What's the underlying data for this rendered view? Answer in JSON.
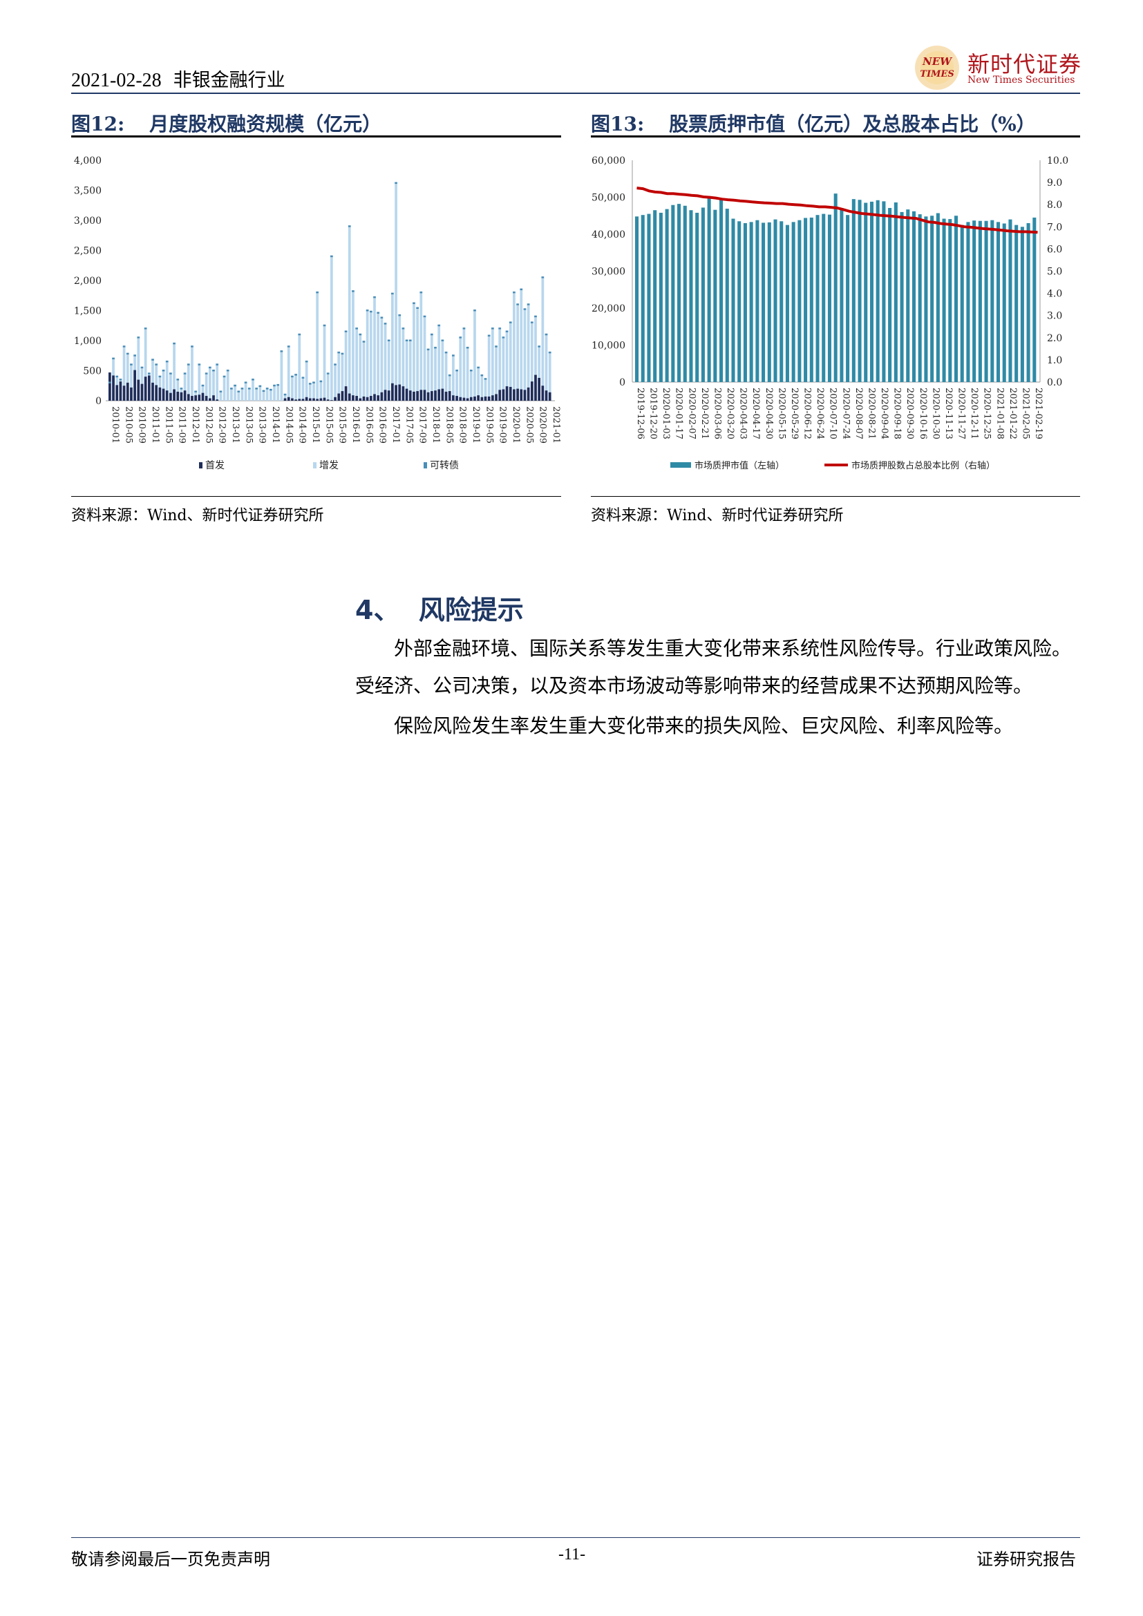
{
  "header": {
    "date": "2021-02-28",
    "industry": "非银金融行业",
    "brand_cn": "新时代证券",
    "brand_en": "New Times Securities",
    "logo_text_1": "NEW",
    "logo_text_2": "TIMES"
  },
  "figures": [
    {
      "number": "图12:",
      "title": "月度股权融资规模（亿元）",
      "source": "资料来源：Wind、新时代证券研究所"
    },
    {
      "number": "图13:",
      "title": "股票质押市值（亿元）及总股本占比（%）",
      "source": "资料来源：Wind、新时代证券研究所"
    }
  ],
  "chart_data": [
    {
      "type": "bar",
      "stacked": false,
      "ylim": [
        0,
        4000
      ],
      "yticks": [
        "4,000",
        "3,500",
        "3,000",
        "2,500",
        "2,000",
        "1,500",
        "1,000",
        "500",
        "0"
      ],
      "xtick_labels": [
        "2010-01",
        "2010-05",
        "2010-09",
        "2011-01",
        "2011-05",
        "2011-09",
        "2012-01",
        "2012-05",
        "2012-09",
        "2013-01",
        "2013-05",
        "2013-09",
        "2014-01",
        "2014-05",
        "2014-09",
        "2015-01",
        "2015-05",
        "2015-09",
        "2016-01",
        "2016-05",
        "2016-09",
        "2017-01",
        "2017-05",
        "2017-09",
        "2018-01",
        "2018-05",
        "2018-09",
        "2019-01",
        "2019-05",
        "2019-09",
        "2020-01",
        "2020-05",
        "2020-09",
        "2021-01"
      ],
      "legend": [
        "首发",
        "增发",
        "可转债"
      ],
      "colors": {
        "ipo": "#1f2d5a",
        "seo": "#b8d7ee",
        "cb": "#4a8db7"
      },
      "ipo": [
        470,
        420,
        260,
        320,
        250,
        300,
        220,
        510,
        350,
        280,
        400,
        420,
        300,
        260,
        220,
        200,
        170,
        130,
        190,
        150,
        140,
        170,
        110,
        80,
        90,
        100,
        130,
        80,
        40,
        90,
        20,
        0,
        0,
        0,
        0,
        0,
        0,
        0,
        0,
        0,
        0,
        0,
        0,
        0,
        0,
        0,
        0,
        0,
        0,
        40,
        60,
        40,
        20,
        30,
        30,
        60,
        40,
        40,
        30,
        40,
        50,
        20,
        10,
        60,
        120,
        160,
        240,
        120,
        90,
        80,
        40,
        70,
        60,
        80,
        110,
        90,
        140,
        180,
        170,
        290,
        260,
        270,
        240,
        200,
        170,
        150,
        160,
        180,
        180,
        140,
        160,
        170,
        190,
        200,
        150,
        160,
        90,
        80,
        60,
        50,
        40,
        60,
        70,
        90,
        60,
        70,
        70,
        90,
        110,
        180,
        190,
        240,
        230,
        190,
        200,
        190,
        180,
        220,
        320,
        430,
        380,
        250,
        170,
        140
      ],
      "seo": [
        300,
        700,
        400,
        350,
        900,
        780,
        600,
        750,
        1050,
        550,
        1200,
        450,
        680,
        600,
        400,
        500,
        650,
        450,
        950,
        350,
        200,
        450,
        600,
        900,
        150,
        600,
        250,
        450,
        550,
        500,
        600,
        150,
        400,
        500,
        200,
        250,
        150,
        200,
        300,
        200,
        350,
        200,
        240,
        160,
        200,
        180,
        250,
        260,
        820,
        100,
        900,
        400,
        430,
        1100,
        380,
        650,
        280,
        300,
        1800,
        320,
        1250,
        450,
        2400,
        600,
        800,
        780,
        1150,
        2900,
        1820,
        1200,
        1100,
        980,
        1500,
        1480,
        1720,
        1460,
        1380,
        1280,
        1000,
        1780,
        3620,
        1420,
        1200,
        1000,
        1000,
        1620,
        1540,
        1800,
        1400,
        850,
        1100,
        880,
        1250,
        1000,
        800,
        420,
        750,
        500,
        1050,
        1200,
        880,
        500,
        1500,
        550,
        420,
        360,
        1080,
        1200,
        900,
        1200,
        1050,
        1150,
        1300,
        1800,
        1600,
        1850,
        1520,
        1600,
        1300,
        1400,
        900,
        2050,
        1100,
        800
      ],
      "cb": [
        0,
        0,
        0,
        0,
        0,
        0,
        0,
        0,
        30,
        40,
        0,
        0,
        0,
        0,
        0,
        0,
        0,
        0,
        0,
        0,
        0,
        0,
        0,
        0,
        0,
        0,
        0,
        0,
        0,
        0,
        0,
        0,
        0,
        0,
        0,
        0,
        0,
        0,
        0,
        0,
        0,
        0,
        0,
        0,
        0,
        0,
        0,
        0,
        0,
        0,
        0,
        0,
        0,
        0,
        0,
        0,
        0,
        0,
        0,
        0,
        0,
        0,
        0,
        0,
        0,
        0,
        0,
        0,
        0,
        0,
        0,
        0,
        0,
        0,
        0,
        0,
        0,
        0,
        0,
        0,
        0,
        0,
        0,
        0,
        0,
        0,
        0,
        0,
        0,
        0,
        0,
        0,
        0,
        0,
        0,
        0,
        0,
        0,
        0,
        0,
        0,
        0,
        0,
        0,
        0,
        0,
        0,
        0,
        0,
        0,
        0,
        0,
        0,
        0,
        0,
        0,
        0,
        0,
        0,
        0,
        0,
        0,
        0,
        0
      ]
    },
    {
      "type": "bar+line",
      "y_left_lim": [
        0,
        60000
      ],
      "y_right_lim": [
        0,
        10
      ],
      "y_left_ticks": [
        "60,000",
        "50,000",
        "40,000",
        "30,000",
        "20,000",
        "10,000",
        "0"
      ],
      "y_right_ticks": [
        "10.0",
        "9.0",
        "8.0",
        "7.0",
        "6.0",
        "5.0",
        "4.0",
        "3.0",
        "2.0",
        "1.0",
        "0.0"
      ],
      "xtick_labels": [
        "2019-12-06",
        "2019-12-20",
        "2020-01-03",
        "2020-01-17",
        "2020-02-07",
        "2020-02-21",
        "2020-03-06",
        "2020-03-20",
        "2020-04-03",
        "2020-04-17",
        "2020-04-30",
        "2020-05-15",
        "2020-05-29",
        "2020-06-12",
        "2020-06-24",
        "2020-07-10",
        "2020-07-24",
        "2020-08-07",
        "2020-08-21",
        "2020-09-04",
        "2020-09-18",
        "2020-09-30",
        "2020-10-16",
        "2020-10-30",
        "2020-11-13",
        "2020-11-27",
        "2020-12-11",
        "2020-12-25",
        "2021-01-08",
        "2021-01-22",
        "2021-02-05",
        "2021-02-19"
      ],
      "legend": [
        "市场质押市值（左轴）",
        "市场质押股数占总股本比例（右轴）"
      ],
      "colors": {
        "bar": "#2f8aa6",
        "line": "#c00000"
      },
      "bars": [
        44800,
        45200,
        45500,
        46500,
        45800,
        46800,
        47900,
        48200,
        47700,
        46500,
        45800,
        47200,
        49800,
        46600,
        49500,
        46900,
        44200,
        43500,
        43000,
        43300,
        43800,
        43100,
        43200,
        44000,
        43500,
        42500,
        43300,
        43800,
        44400,
        44500,
        45200,
        45500,
        45300,
        51000,
        47100,
        45200,
        49500,
        49300,
        48500,
        48800,
        49200,
        48900,
        47100,
        48600,
        46000,
        46700,
        46200,
        45400,
        44800,
        45000,
        45700,
        44200,
        44100,
        45000,
        42500,
        43300,
        43700,
        43600,
        43600,
        43800,
        43300,
        42900,
        44000,
        42500,
        42000,
        43000,
        44500
      ],
      "line": [
        8.75,
        8.72,
        8.62,
        8.57,
        8.55,
        8.5,
        8.5,
        8.47,
        8.45,
        8.42,
        8.4,
        8.35,
        8.33,
        8.3,
        8.25,
        8.22,
        8.2,
        8.17,
        8.15,
        8.12,
        8.1,
        8.08,
        8.07,
        8.05,
        8.05,
        8.02,
        8.0,
        7.98,
        7.95,
        7.93,
        7.9,
        7.9,
        7.88,
        7.85,
        7.78,
        7.7,
        7.65,
        7.6,
        7.58,
        7.55,
        7.52,
        7.5,
        7.48,
        7.45,
        7.42,
        7.4,
        7.38,
        7.3,
        7.22,
        7.2,
        7.15,
        7.12,
        7.1,
        7.05,
        7.0,
        6.98,
        6.95,
        6.92,
        6.9,
        6.88,
        6.85,
        6.82,
        6.8,
        6.78,
        6.78,
        6.77,
        6.75
      ]
    }
  ],
  "section": {
    "number": "4、",
    "title": "风险提示",
    "paragraphs": [
      "外部金融环境、国际关系等发生重大变化带来系统性风险传导。行业政策风险。受经济、公司决策，以及资本市场波动等影响带来的经营成果不达预期风险等。",
      "保险风险发生率发生重大变化带来的损失风险、巨灾风险、利率风险等。"
    ]
  },
  "footer": {
    "disclaimer": "敬请参阅最后一页免责声明",
    "page": "-11-",
    "report_type": "证券研究报告"
  }
}
